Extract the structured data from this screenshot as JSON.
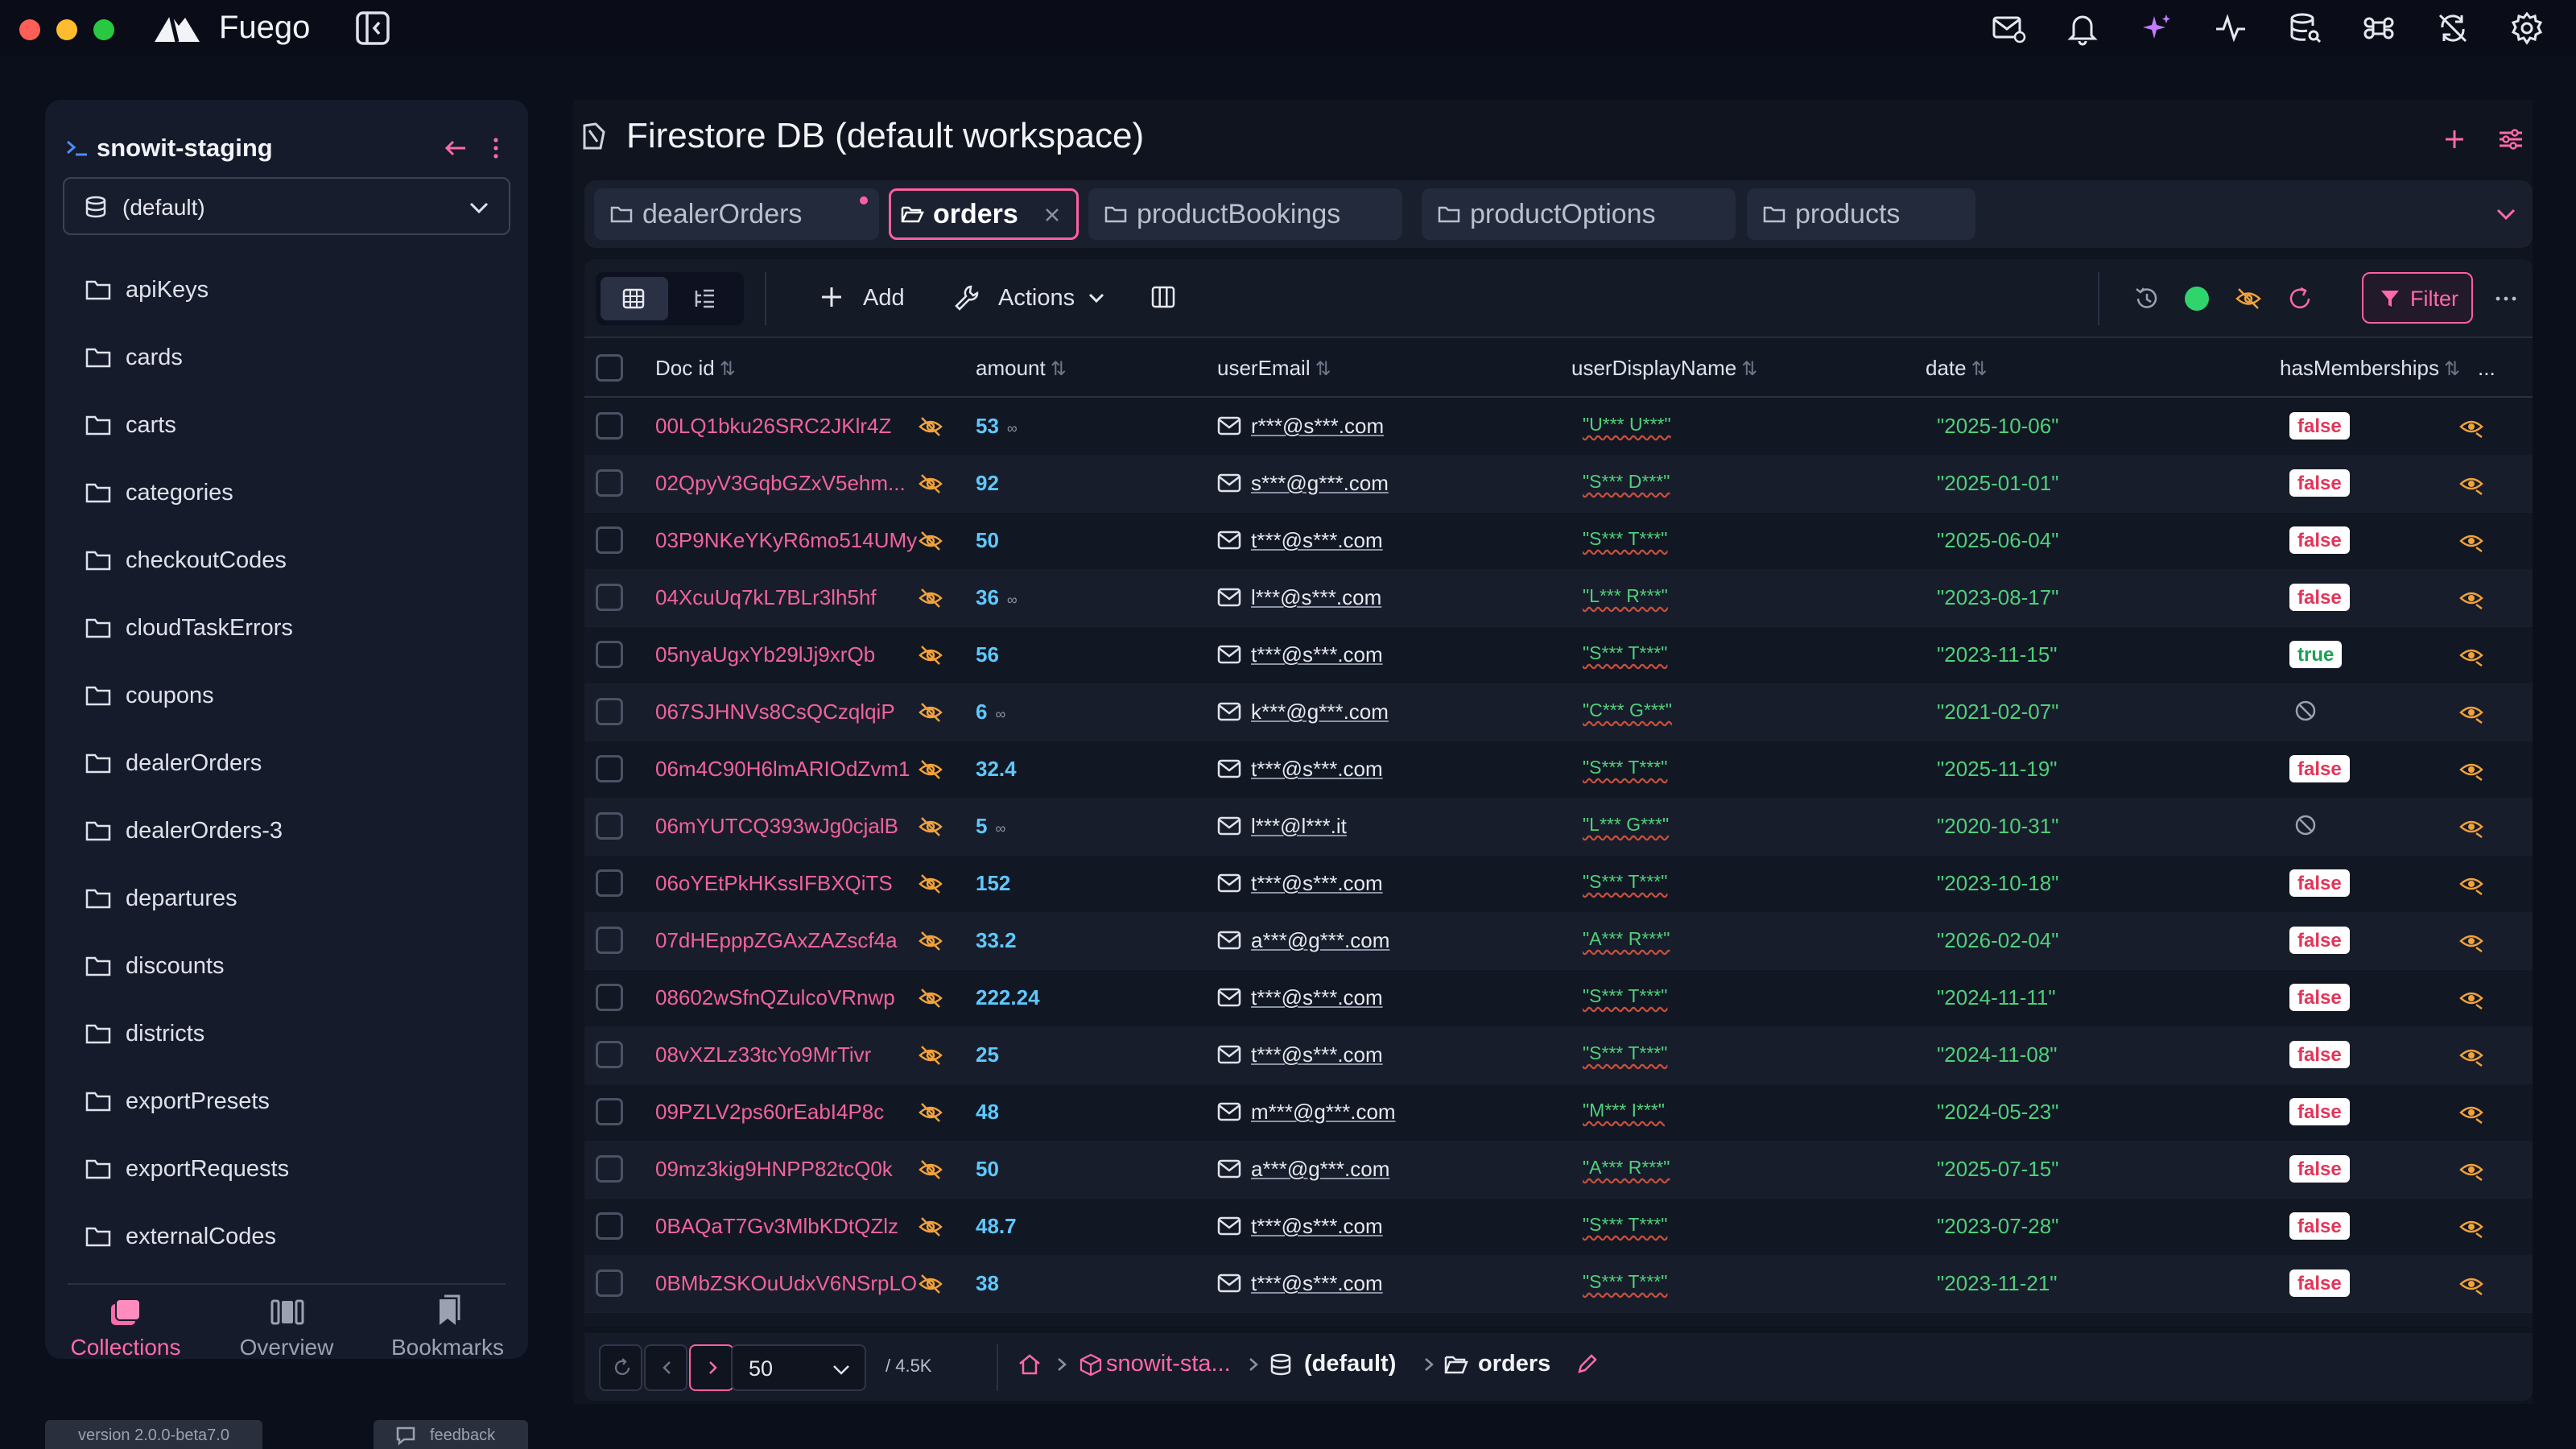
{
  "app": {
    "name": "Fuego",
    "version": "version 2.0.0-beta7.0",
    "feedback": "feedback"
  },
  "topbar_icons": [
    "mail-question-icon",
    "bell-icon",
    "sparkles-icon",
    "activity-icon",
    "database-search-icon",
    "command-icon",
    "sync-off-icon",
    "settings-icon"
  ],
  "project": {
    "name": "snowit-staging",
    "database": "(default)"
  },
  "collections": [
    "apiKeys",
    "cards",
    "carts",
    "categories",
    "checkoutCodes",
    "cloudTaskErrors",
    "coupons",
    "dealerOrders",
    "dealerOrders-3",
    "departures",
    "discounts",
    "districts",
    "exportPresets",
    "exportRequests",
    "externalCodes"
  ],
  "bottom_nav": [
    {
      "label": "Collections",
      "active": true
    },
    {
      "label": "Overview",
      "active": false
    },
    {
      "label": "Bookmarks",
      "active": false
    }
  ],
  "main": {
    "title": "Firestore DB (default workspace)"
  },
  "tabs": [
    {
      "label": "dealerOrders",
      "active": false,
      "dot": true
    },
    {
      "label": "orders",
      "active": true
    },
    {
      "label": "productBookings",
      "active": false
    },
    {
      "label": "productOptions",
      "active": false
    },
    {
      "label": "products",
      "active": false
    }
  ],
  "toolbar": {
    "add": "Add",
    "actions": "Actions",
    "filter": "Filter"
  },
  "columns": [
    "Doc id",
    "amount",
    "userEmail",
    "userDisplayName",
    "date",
    "hasMemberships",
    "..."
  ],
  "rows": [
    {
      "id": "00LQ1bku26SRC2JKlr4Z",
      "amount": "53",
      "inf": true,
      "email": "r***@s***.com",
      "name": "\"U*** U***\"",
      "date": "\"2025-10-06\"",
      "member": "false"
    },
    {
      "id": "02QpyV3GqbGZxV5ehm...",
      "amount": "92",
      "inf": false,
      "email": "s***@g***.com",
      "name": "\"S*** D***\"",
      "date": "\"2025-01-01\"",
      "member": "false"
    },
    {
      "id": "03P9NKeYKyR6mo514UMy",
      "amount": "50",
      "inf": false,
      "email": "t***@s***.com",
      "name": "\"S*** T***\"",
      "date": "\"2025-06-04\"",
      "member": "false"
    },
    {
      "id": "04XcuUq7kL7BLr3lh5hf",
      "amount": "36",
      "inf": true,
      "email": "l***@s***.com",
      "name": "\"L*** R***\"",
      "date": "\"2023-08-17\"",
      "member": "false"
    },
    {
      "id": "05nyaUgxYb29lJj9xrQb",
      "amount": "56",
      "inf": false,
      "email": "t***@s***.com",
      "name": "\"S*** T***\"",
      "date": "\"2023-11-15\"",
      "member": "true"
    },
    {
      "id": "067SJHNVs8CsQCzqlqiP",
      "amount": "6",
      "inf": true,
      "email": "k***@g***.com",
      "name": "\"C*** G***\"",
      "date": "\"2021-02-07\"",
      "member": "null"
    },
    {
      "id": "06m4C90H6lmARIOdZvm1",
      "amount": "32.4",
      "inf": false,
      "email": "t***@s***.com",
      "name": "\"S*** T***\"",
      "date": "\"2025-11-19\"",
      "member": "false"
    },
    {
      "id": "06mYUTCQ393wJg0cjalB",
      "amount": "5",
      "inf": true,
      "email": "l***@l***.it",
      "name": "\"L*** G***\"",
      "date": "\"2020-10-31\"",
      "member": "null"
    },
    {
      "id": "06oYEtPkHKssIFBXQiTS",
      "amount": "152",
      "inf": false,
      "email": "t***@s***.com",
      "name": "\"S*** T***\"",
      "date": "\"2023-10-18\"",
      "member": "false"
    },
    {
      "id": "07dHEpppZGAxZAZscf4a",
      "amount": "33.2",
      "inf": false,
      "email": "a***@g***.com",
      "name": "\"A*** R***\"",
      "date": "\"2026-02-04\"",
      "member": "false"
    },
    {
      "id": "08602wSfnQZulcoVRnwp",
      "amount": "222.24",
      "inf": false,
      "email": "t***@s***.com",
      "name": "\"S*** T***\"",
      "date": "\"2024-11-11\"",
      "member": "false"
    },
    {
      "id": "08vXZLz33tcYo9MrTivr",
      "amount": "25",
      "inf": false,
      "email": "t***@s***.com",
      "name": "\"S*** T***\"",
      "date": "\"2024-11-08\"",
      "member": "false"
    },
    {
      "id": "09PZLV2ps60rEabI4P8c",
      "amount": "48",
      "inf": false,
      "email": "m***@g***.com",
      "name": "\"M*** I***\"",
      "date": "\"2024-05-23\"",
      "member": "false"
    },
    {
      "id": "09mz3kig9HNPP82tcQ0k",
      "amount": "50",
      "inf": false,
      "email": "a***@g***.com",
      "name": "\"A*** R***\"",
      "date": "\"2025-07-15\"",
      "member": "false"
    },
    {
      "id": "0BAQaT7Gv3MlbKDtQZlz",
      "amount": "48.7",
      "inf": false,
      "email": "t***@s***.com",
      "name": "\"S*** T***\"",
      "date": "\"2023-07-28\"",
      "member": "false"
    },
    {
      "id": "0BMbZSKOuUdxV6NSrpLO",
      "amount": "38",
      "inf": false,
      "email": "t***@s***.com",
      "name": "\"S*** T***\"",
      "date": "\"2023-11-21\"",
      "member": "false"
    }
  ],
  "footer": {
    "page_size": "50",
    "total": "/ 4.5K",
    "crumb_project": "snowit-sta...",
    "crumb_db": "(default)",
    "crumb_collection": "orders"
  },
  "colors": {
    "accent": "#ff5fa2",
    "id_text": "#f0639b",
    "number": "#5ec8ff",
    "string": "#4fd07a",
    "false_badge": "#e2355a",
    "true_badge": "#1f9f54"
  }
}
